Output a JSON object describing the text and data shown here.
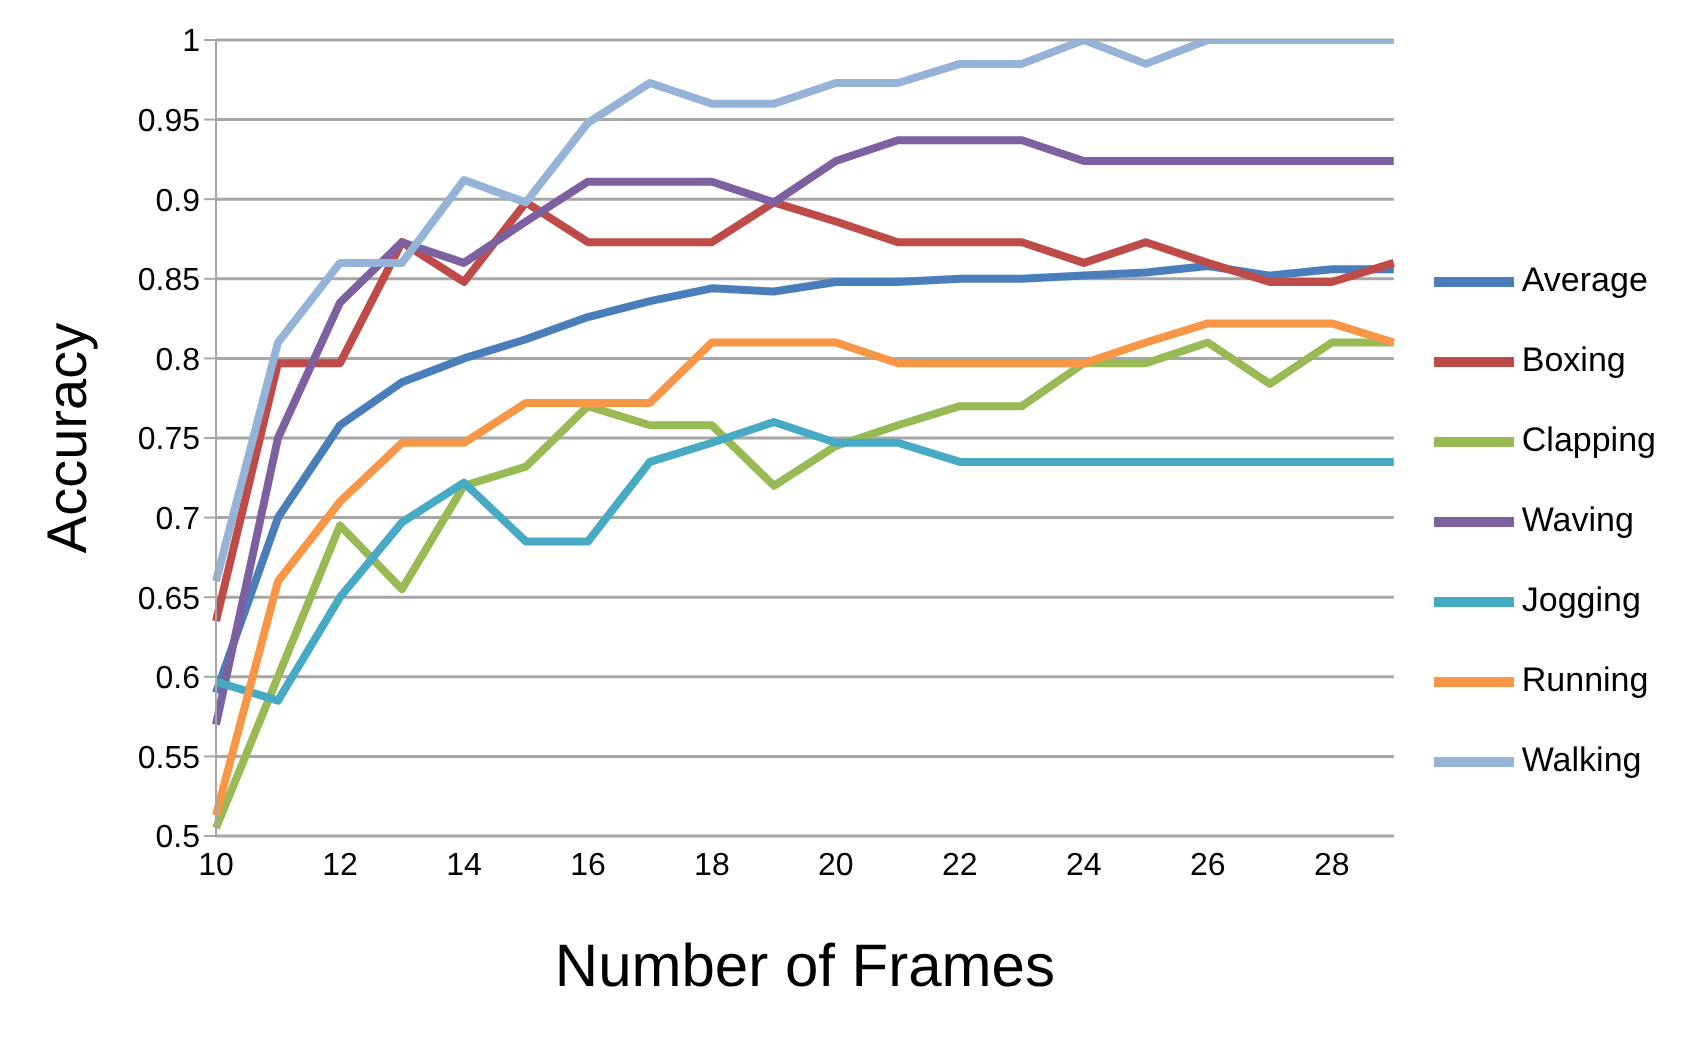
{
  "chart_data": {
    "type": "line",
    "xlabel": "Number of Frames",
    "ylabel": "Accuracy",
    "categories": [
      "10",
      null,
      "12",
      null,
      "14",
      null,
      "16",
      null,
      "18",
      null,
      "20",
      null,
      "22",
      null,
      "24",
      null,
      "26",
      null,
      "28",
      null
    ],
    "ylim": [
      0.5,
      1
    ],
    "yticks": [
      0.5,
      0.55,
      0.6,
      0.65,
      0.7,
      0.75,
      0.8,
      0.85,
      0.9,
      0.95,
      1
    ],
    "grid": "y",
    "legend": "right",
    "marker": "none",
    "line_style": "solid",
    "series": [
      {
        "name": "Average",
        "color": "#4a7ebb",
        "values": [
          0.59,
          0.7,
          0.758,
          0.785,
          0.8,
          0.812,
          0.826,
          0.836,
          0.844,
          0.842,
          0.848,
          0.848,
          0.85,
          0.85,
          0.852,
          0.854,
          0.858,
          0.852,
          0.856,
          0.856
        ]
      },
      {
        "name": "Boxing",
        "color": "#be4b48",
        "values": [
          0.635,
          0.797,
          0.797,
          0.873,
          0.848,
          0.898,
          0.873,
          0.873,
          0.873,
          0.898,
          0.886,
          0.873,
          0.873,
          0.873,
          0.86,
          0.873,
          0.86,
          0.848,
          0.848,
          0.86
        ]
      },
      {
        "name": "Clapping",
        "color": "#98b954",
        "values": [
          0.505,
          0.6,
          0.695,
          0.655,
          0.72,
          0.732,
          0.77,
          0.758,
          0.758,
          0.72,
          0.745,
          0.758,
          0.77,
          0.77,
          0.797,
          0.797,
          0.81,
          0.784,
          0.81,
          0.81
        ]
      },
      {
        "name": "Waving",
        "color": "#7d60a0",
        "values": [
          0.57,
          0.75,
          0.835,
          0.873,
          0.86,
          0.886,
          0.911,
          0.911,
          0.911,
          0.898,
          0.924,
          0.937,
          0.937,
          0.937,
          0.924,
          0.924,
          0.924,
          0.924,
          0.924,
          0.924
        ]
      },
      {
        "name": "Jogging",
        "color": "#46aac5",
        "values": [
          0.597,
          0.585,
          0.65,
          0.697,
          0.722,
          0.685,
          0.685,
          0.735,
          0.747,
          0.76,
          0.747,
          0.747,
          0.735,
          0.735,
          0.735,
          0.735,
          0.735,
          0.735,
          0.735,
          0.735
        ]
      },
      {
        "name": "Running",
        "color": "#f79646",
        "values": [
          0.513,
          0.66,
          0.71,
          0.747,
          0.747,
          0.772,
          0.772,
          0.772,
          0.81,
          0.81,
          0.81,
          0.797,
          0.797,
          0.797,
          0.797,
          0.81,
          0.822,
          0.822,
          0.822,
          0.81
        ]
      },
      {
        "name": "Walking",
        "color": "#95b3d7",
        "values": [
          0.66,
          0.81,
          0.86,
          0.86,
          0.912,
          0.898,
          0.948,
          0.973,
          0.96,
          0.96,
          0.973,
          0.973,
          0.985,
          0.985,
          1,
          0.985,
          1,
          1,
          1,
          1
        ]
      }
    ]
  }
}
